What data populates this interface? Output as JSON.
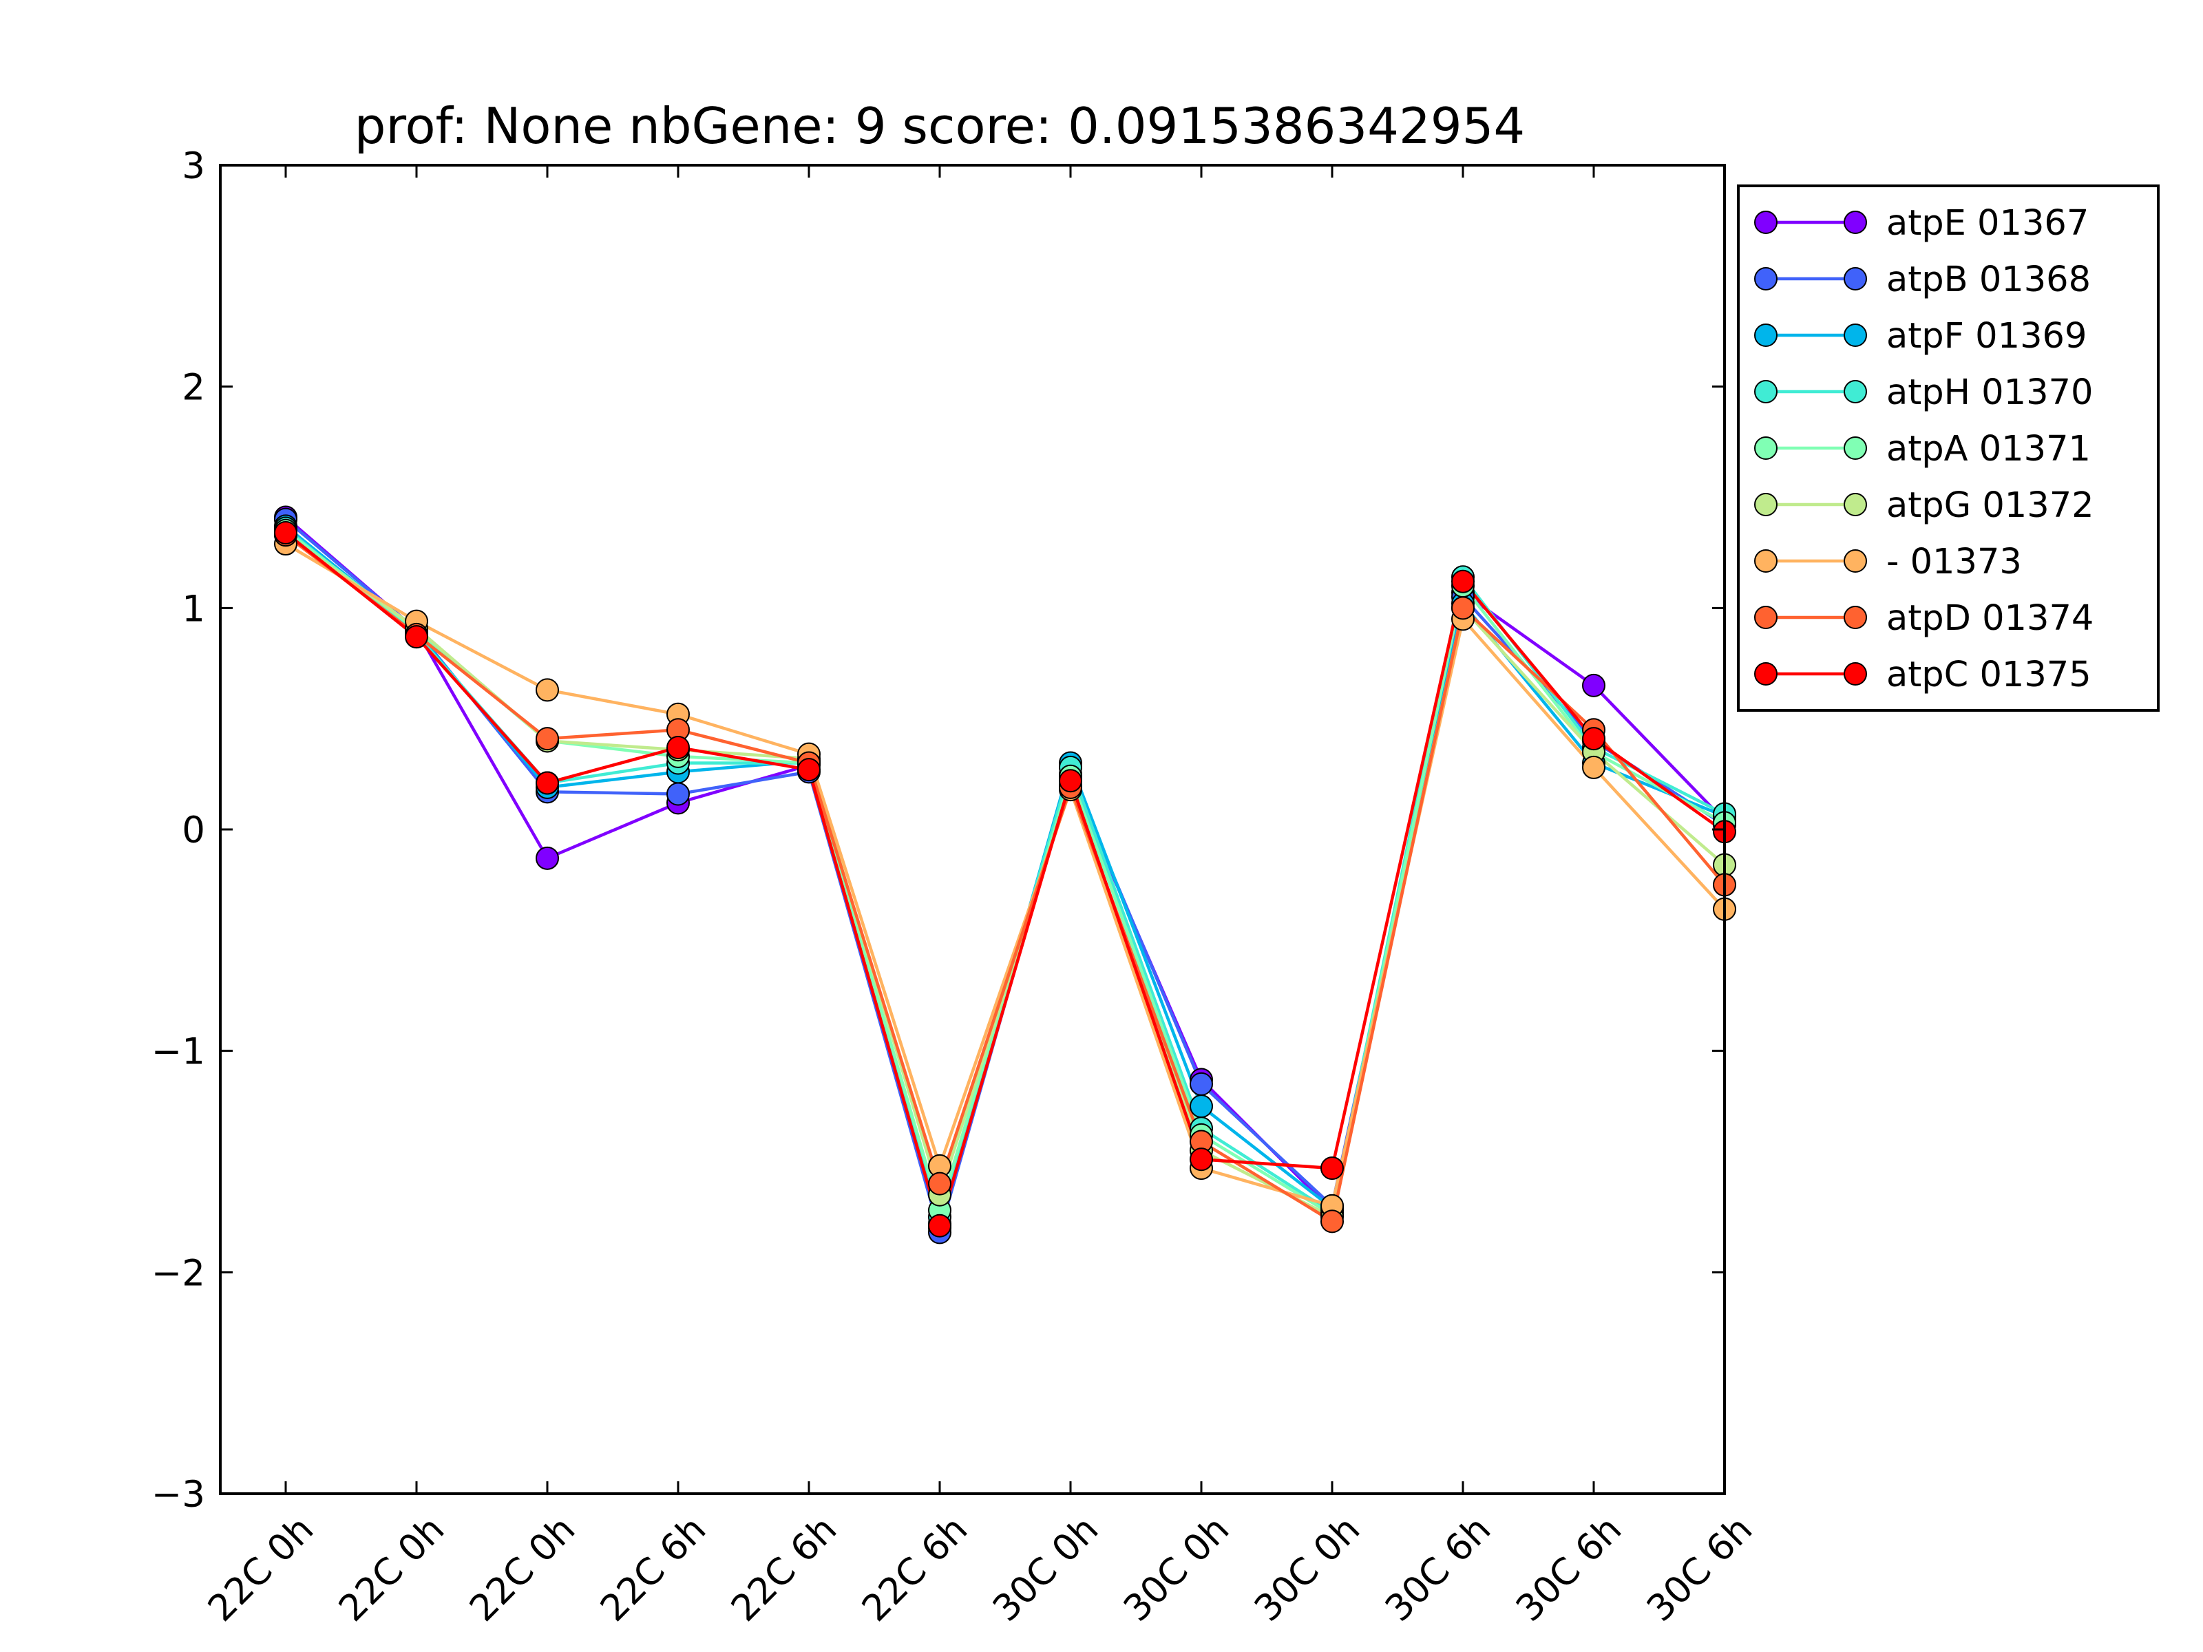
{
  "chart_data": {
    "type": "line",
    "title": "prof: None nbGene: 9 score: 0.0915386342954",
    "xlabel": "",
    "ylabel": "",
    "ylim": [
      -3,
      3
    ],
    "yticks": [
      "3",
      "2",
      "1",
      "0",
      "−1",
      "−2",
      "−3"
    ],
    "ytick_values": [
      3,
      2,
      1,
      0,
      -1,
      -2,
      -3
    ],
    "categories": [
      "22C 0h",
      "22C 0h",
      "22C 0h",
      "22C 6h",
      "22C 6h",
      "22C 6h",
      "30C 0h",
      "30C 0h",
      "30C 0h",
      "30C 6h",
      "30C 6h",
      "30C 6h"
    ],
    "grid": false,
    "legend_position": "outside-right",
    "series": [
      {
        "name": "atpE 01367",
        "color": "#8000ff",
        "values": [
          1.41,
          0.9,
          -0.13,
          0.12,
          0.29,
          -1.8,
          0.23,
          -1.13,
          -1.72,
          1.07,
          0.65,
          0.04
        ]
      },
      {
        "name": "atpB 01368",
        "color": "#4062fa",
        "values": [
          1.4,
          0.9,
          0.17,
          0.16,
          0.26,
          -1.82,
          0.25,
          -1.15,
          -1.7,
          1.05,
          0.4,
          0.02
        ]
      },
      {
        "name": "atpF 01369",
        "color": "#00b5eb",
        "values": [
          1.37,
          0.89,
          0.19,
          0.26,
          0.31,
          -1.78,
          0.3,
          -1.25,
          -1.71,
          1.02,
          0.3,
          0.06
        ]
      },
      {
        "name": "atpH 01370",
        "color": "#40ecd4",
        "values": [
          1.36,
          0.88,
          0.21,
          0.3,
          0.3,
          -1.75,
          0.28,
          -1.35,
          -1.73,
          1.14,
          0.37,
          0.07
        ]
      },
      {
        "name": "atpA 01371",
        "color": "#80ffb4",
        "values": [
          1.35,
          0.9,
          0.4,
          0.33,
          0.3,
          -1.72,
          0.24,
          -1.38,
          -1.74,
          1.1,
          0.35,
          0.03
        ]
      },
      {
        "name": "atpG 01372",
        "color": "#c0eb8d",
        "values": [
          1.33,
          0.91,
          0.4,
          0.36,
          0.32,
          -1.65,
          0.2,
          -1.45,
          -1.75,
          1.0,
          0.35,
          -0.16
        ]
      },
      {
        "name": "- 01373",
        "color": "#ffb360",
        "values": [
          1.29,
          0.94,
          0.63,
          0.52,
          0.34,
          -1.52,
          0.18,
          -1.53,
          -1.7,
          0.95,
          0.28,
          -0.36
        ]
      },
      {
        "name": "atpD 01374",
        "color": "#ff6230",
        "values": [
          1.33,
          0.88,
          0.41,
          0.45,
          0.3,
          -1.6,
          0.19,
          -1.41,
          -1.77,
          1.0,
          0.45,
          -0.25
        ]
      },
      {
        "name": "atpC 01375",
        "color": "#ff0000",
        "values": [
          1.34,
          0.87,
          0.21,
          0.37,
          0.27,
          -1.79,
          0.22,
          -1.49,
          -1.53,
          1.12,
          0.41,
          -0.01
        ]
      }
    ]
  }
}
